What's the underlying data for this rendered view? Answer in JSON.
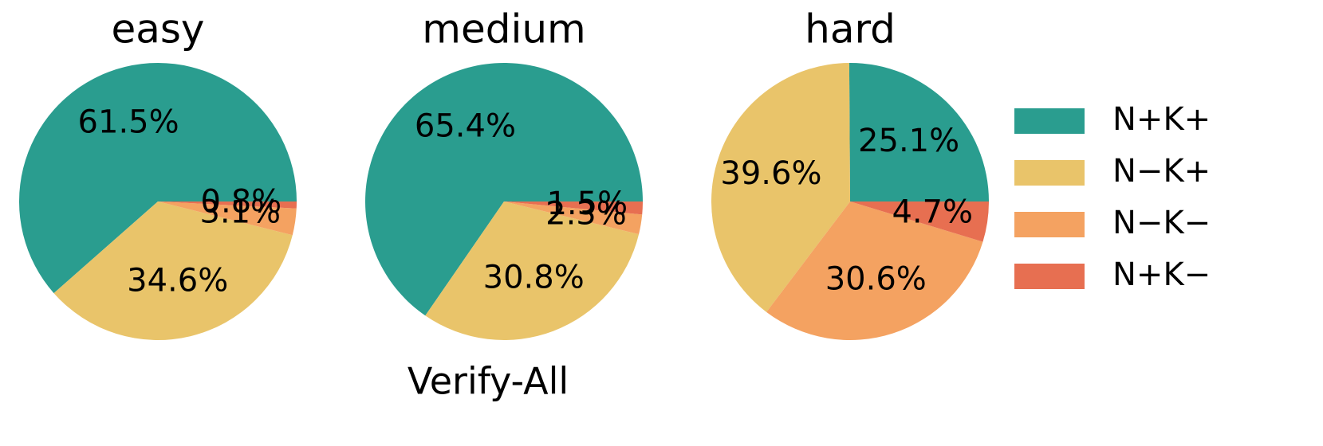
{
  "chart_data": [
    {
      "type": "pie",
      "title": "easy",
      "values": [
        61.5,
        34.6,
        3.1,
        0.8
      ],
      "value_labels": [
        "61.5%",
        "34.6%",
        "3.1%",
        "0.8%"
      ]
    },
    {
      "type": "pie",
      "title": "medium",
      "values": [
        65.4,
        30.8,
        2.3,
        1.5
      ],
      "value_labels": [
        "65.4%",
        "30.8%",
        "2.3%",
        "1.5%"
      ]
    },
    {
      "type": "pie",
      "title": "hard",
      "values": [
        25.1,
        39.6,
        30.6,
        4.7
      ],
      "value_labels": [
        "25.1%",
        "39.6%",
        "30.6%",
        "4.7%"
      ]
    }
  ],
  "legend": {
    "labels": [
      "N+K+",
      "N−K+",
      "N−K−",
      "N+K−"
    ],
    "colors": [
      "#2a9d8f",
      "#e9c46a",
      "#f4a261",
      "#e76f51"
    ],
    "position": "right"
  },
  "xlabel": "Verify-All"
}
